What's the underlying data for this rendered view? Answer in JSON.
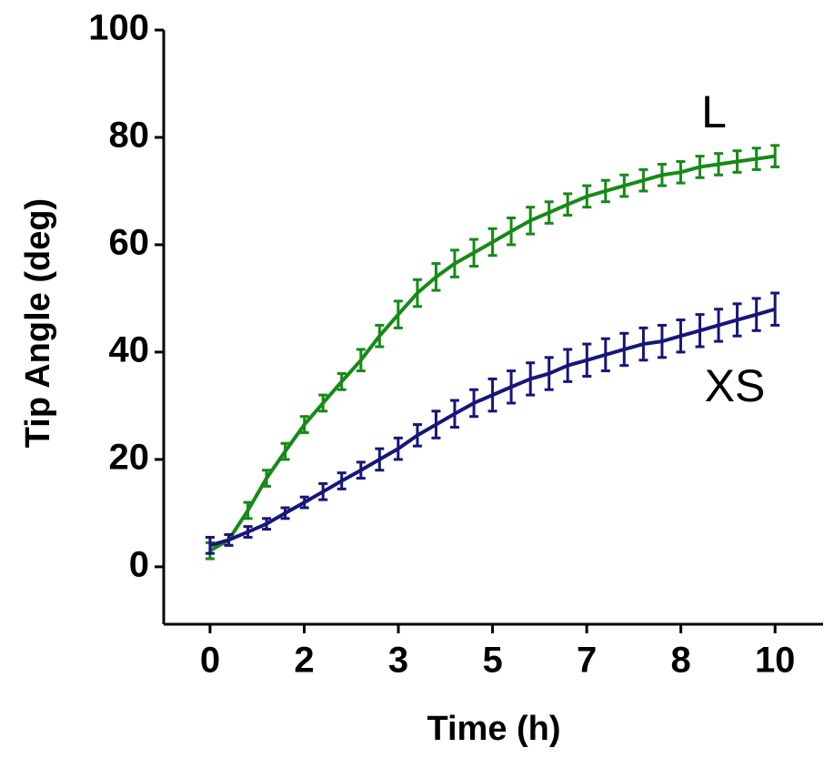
{
  "chart_data": {
    "type": "line",
    "xlabel": "Time (h)",
    "ylabel": "Tip Angle (deg)",
    "x": [
      0,
      0.33,
      0.67,
      1,
      1.33,
      1.67,
      2,
      2.33,
      2.67,
      3,
      3.33,
      3.67,
      4,
      4.33,
      4.67,
      5,
      5.33,
      5.67,
      6,
      6.33,
      6.67,
      7,
      7.33,
      7.67,
      8,
      8.33,
      8.67,
      9,
      9.33,
      9.67,
      10
    ],
    "series": [
      {
        "name": "L",
        "color": "#168a16",
        "values": [
          3,
          5,
          10.5,
          16.5,
          21.5,
          26.5,
          30.5,
          34.5,
          38.5,
          43,
          47,
          51,
          54,
          56.5,
          58.5,
          60.5,
          62.5,
          64.5,
          66,
          67.5,
          69,
          70,
          71,
          72,
          73,
          73.5,
          74.5,
          75,
          75.5,
          76,
          76.5
        ],
        "errors": [
          1.5,
          1,
          1.5,
          1.5,
          1.5,
          1.5,
          1.5,
          1.5,
          2,
          2,
          2.5,
          2.5,
          2.5,
          2.5,
          2.5,
          2.5,
          2.5,
          2.5,
          2,
          2,
          2,
          2,
          2,
          2,
          2,
          2,
          2,
          2,
          2,
          2,
          2
        ]
      },
      {
        "name": "XS",
        "color": "#16167a",
        "values": [
          4,
          5,
          6.5,
          8,
          10,
          12,
          14,
          16,
          18,
          20,
          22,
          24.5,
          26.5,
          28.5,
          30.5,
          32,
          33.5,
          35,
          36,
          37.5,
          38.5,
          39.5,
          40.5,
          41.5,
          42,
          43,
          44,
          45,
          46,
          47,
          48
        ],
        "errors": [
          1.5,
          1,
          1,
          1,
          1,
          1,
          1.5,
          1.5,
          1.5,
          2,
          2,
          2,
          2.5,
          2.5,
          2.5,
          3,
          3,
          3,
          3,
          3,
          3,
          3,
          3,
          3,
          3,
          3,
          3,
          3,
          3,
          3,
          3
        ]
      }
    ],
    "xlim": [
      -0.82,
      10.85
    ],
    "xticks": [
      0,
      {
        "value": 1.667,
        "label": "2"
      },
      {
        "value": 3.333,
        "label": "3"
      },
      5,
      {
        "value": 6.667,
        "label": "7"
      },
      {
        "value": 8.333,
        "label": "8"
      },
      10
    ],
    "ylim": [
      -10.7,
      100
    ],
    "yticks": [
      0,
      20,
      40,
      60,
      80,
      100
    ]
  }
}
